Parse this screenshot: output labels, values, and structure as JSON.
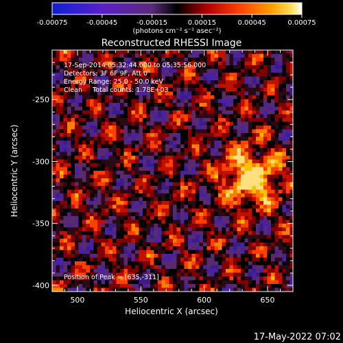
{
  "colorbar": {
    "tick_labels": [
      "-0.00075",
      "-0.00045",
      "-0.00015",
      "0.00015",
      "0.00045",
      "0.00075"
    ],
    "tick_values": [
      -0.00075,
      -0.00045,
      -0.00015,
      0.00015,
      0.00045,
      0.00075
    ],
    "range": [
      -0.00075,
      0.00075
    ],
    "units_label": "(photons cm⁻² s⁻¹ asec⁻²)",
    "colors": [
      "#1020d0",
      "#6020c0",
      "#6a2a90",
      "#2a0000",
      "#b00000",
      "#ff4000",
      "#ff9000",
      "#ffd800",
      "#ffffff"
    ]
  },
  "chart_data": {
    "type": "heatmap",
    "title": "Reconstructed RHESSI Image",
    "xlabel": "Heliocentric X (arcsec)",
    "ylabel": "Heliocentric Y (arcsec)",
    "xlim": [
      480,
      670
    ],
    "ylim": [
      -405,
      -210
    ],
    "x_ticks": [
      500,
      550,
      600,
      650
    ],
    "y_ticks": [
      -250,
      -300,
      -350,
      -400
    ],
    "x_tick_labels": [
      "500",
      "550",
      "600",
      "650"
    ],
    "y_tick_labels": [
      "-250",
      "-300",
      "-350",
      "-400"
    ],
    "annotations": [
      "17-Sep-2014 05:32:44.000 to 05:35:56.000",
      "Detectors: 3F 6F 9F, Att 0",
      "Energy Range: 25.0 - 50.0 keV",
      "Clean     Total counts: 1.78E+03"
    ],
    "peak_label": "Position of Peak = [635,-311]",
    "peak": [
      635,
      -311
    ]
  },
  "footer": {
    "timestamp": "17-May-2022 07:02"
  }
}
